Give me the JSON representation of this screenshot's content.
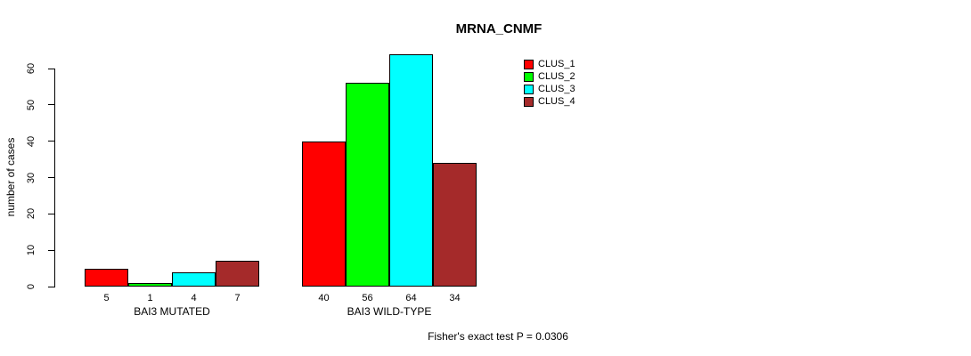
{
  "chart_data": {
    "type": "bar",
    "title": "MRNA_CNMF",
    "xlabel": "",
    "ylabel": "number of cases",
    "categories": [
      "BAI3 MUTATED",
      "BAI3 WILD-TYPE"
    ],
    "series": [
      {
        "name": "CLUS_1",
        "color": "#FF0000",
        "values": [
          5,
          40
        ]
      },
      {
        "name": "CLUS_2",
        "color": "#00FF00",
        "values": [
          1,
          56
        ]
      },
      {
        "name": "CLUS_3",
        "color": "#00FFFF",
        "values": [
          4,
          64
        ]
      },
      {
        "name": "CLUS_4",
        "color": "#A52A2A",
        "values": [
          7,
          34
        ]
      }
    ],
    "ylim": [
      0,
      60
    ],
    "yticks": [
      0,
      10,
      20,
      30,
      40,
      50,
      60
    ],
    "grid": false,
    "legend_position": "top-right",
    "bar_value_labels": true,
    "annotation": "Fisher's exact test P = 0.0306"
  }
}
